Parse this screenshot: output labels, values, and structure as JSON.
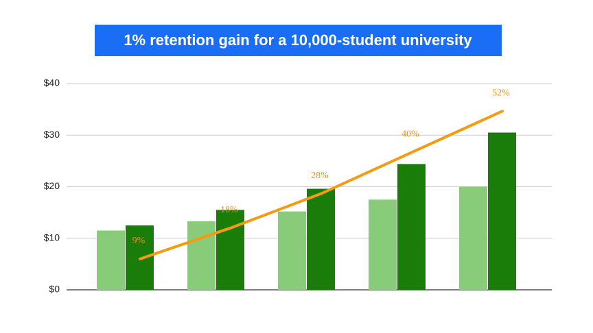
{
  "chart_data": {
    "type": "bar",
    "title": "1% retention gain for a 10,000-student university",
    "categories": [
      null,
      null,
      null,
      null,
      null
    ],
    "series": [
      {
        "color": "#88cc7a",
        "values": [
          11.5,
          13.3,
          15.2,
          17.5,
          20
        ]
      },
      {
        "color": "#1a7d0a",
        "values": [
          12.5,
          15.5,
          19.6,
          24.4,
          30.5
        ]
      },
      {
        "type": "line",
        "axis": "y2",
        "color": "#f39c12",
        "values": [
          9,
          18,
          28,
          40,
          52
        ],
        "value_labels": [
          "9%",
          "18%",
          "28%",
          "40%",
          "52%"
        ]
      }
    ],
    "ylim": [
      0,
      40
    ],
    "yticks": [
      {
        "value": 0,
        "label": "$0"
      },
      {
        "value": 10,
        "label": "$10"
      },
      {
        "value": 20,
        "label": "$20"
      },
      {
        "value": 30,
        "label": "$30"
      },
      {
        "value": 40,
        "label": "$40"
      }
    ],
    "y2lim": [
      0,
      60
    ],
    "grid": true
  }
}
